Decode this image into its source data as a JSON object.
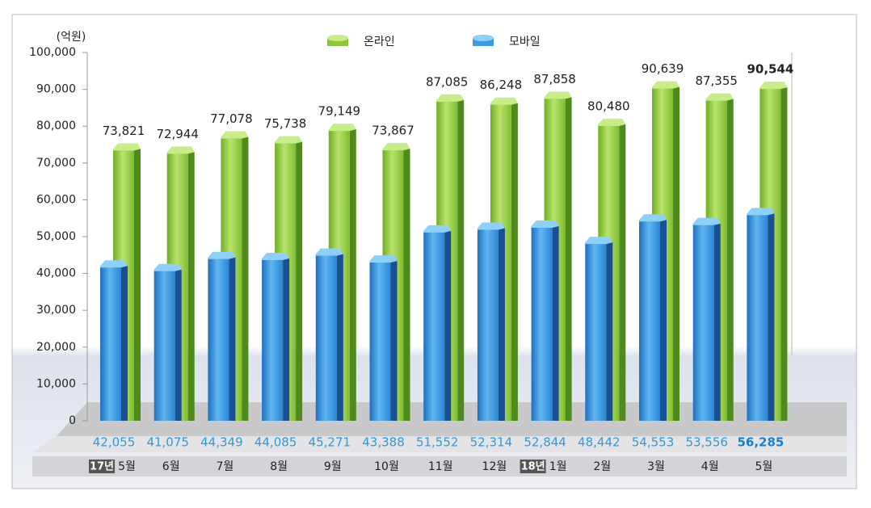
{
  "chart_data": {
    "type": "bar3d",
    "y_unit": "(억원)",
    "categories": [
      "5월",
      "6월",
      "7월",
      "8월",
      "9월",
      "10월",
      "11월",
      "12월",
      "1월",
      "2월",
      "3월",
      "4월",
      "5월"
    ],
    "year_labels": [
      "17년",
      null,
      null,
      null,
      null,
      null,
      null,
      null,
      "18년",
      null,
      null,
      null,
      null
    ],
    "series": [
      {
        "name": "온라인",
        "color": "#8cc63f",
        "values": [
          73821,
          72944,
          77078,
          75738,
          79149,
          73867,
          87085,
          86248,
          87858,
          80480,
          90639,
          87355,
          90544
        ],
        "value_labels": [
          "73,821",
          "72,944",
          "77,078",
          "75,738",
          "79,149",
          "73,867",
          "87,085",
          "86,248",
          "87,858",
          "80,480",
          "90,639",
          "87,355",
          "90,544"
        ]
      },
      {
        "name": "모바일",
        "color": "#3a9be0",
        "values": [
          42055,
          41075,
          44349,
          44085,
          45271,
          43388,
          51552,
          52314,
          52844,
          48442,
          54553,
          53556,
          56285
        ],
        "value_labels": [
          "42,055",
          "41,075",
          "44,349",
          "44,085",
          "45,271",
          "43,388",
          "51,552",
          "52,314",
          "52,844",
          "48,442",
          "54,553",
          "53,556",
          "56,285"
        ]
      }
    ],
    "ylim": [
      0,
      100000
    ],
    "yticks": [
      0,
      {
        "value": 10000,
        "label": "10,000"
      },
      {
        "value": 20000,
        "label": "20,000"
      },
      {
        "value": 30000,
        "label": "30,000"
      },
      {
        "value": 40000,
        "label": "40,000"
      },
      {
        "value": 50000,
        "label": "50,000"
      },
      {
        "value": 60000,
        "label": "60,000"
      },
      {
        "value": 70000,
        "label": "70,000"
      },
      {
        "value": 80000,
        "label": "80,000"
      },
      {
        "value": 90000,
        "label": "90,000"
      },
      {
        "value": 100000,
        "label": "100,000"
      }
    ]
  }
}
